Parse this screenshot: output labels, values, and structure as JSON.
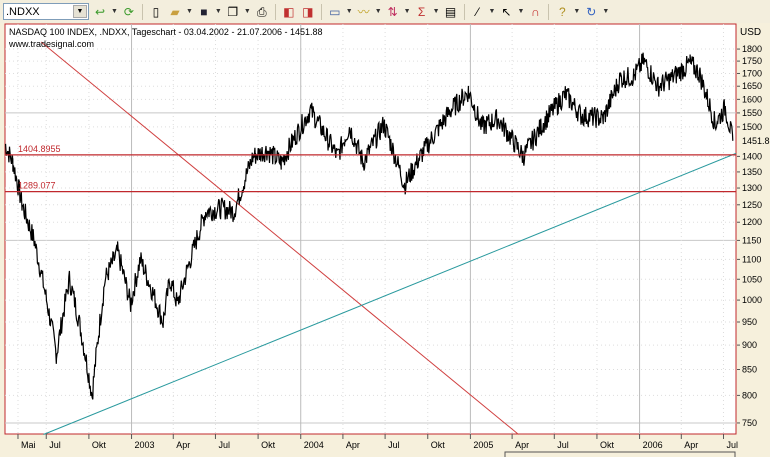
{
  "toolbar": {
    "symbol_value": ".NDXX",
    "icons": [
      "refresh-arrow-icon",
      "reload-icon",
      "new-doc-icon",
      "open-folder-icon",
      "save-icon",
      "copy-icon",
      "print-icon",
      "chart-prev-icon",
      "chart-next-icon",
      "window-icon",
      "indicator-icon",
      "strategy-icon",
      "sigma-icon",
      "properties-icon",
      "draw-line-icon",
      "cursor-icon",
      "magnet-icon",
      "help-icon",
      "undo-icon"
    ]
  },
  "chart_header": {
    "title": "NASDAQ 100 INDEX, .NDXX, Tageschart - 03.04.2002 - 21.07.2006 - 1451.88",
    "source": "www.tradesignal.com"
  },
  "colors": {
    "price": "#000000",
    "hline": "#c0282d",
    "trend_red": "#d04040",
    "trend_teal": "#2a9a9e",
    "grid": "#c8c8c8"
  },
  "chart_data": {
    "type": "line",
    "title": "NASDAQ 100 INDEX, .NDXX, Tageschart",
    "ylabel": "USD",
    "yscale": "log",
    "ylim": [
      730,
      1830
    ],
    "yticks": [
      1800,
      1750,
      1700,
      1650,
      1600,
      1550,
      1500,
      1400,
      1350,
      1300,
      1250,
      1200,
      1150,
      1100,
      1050,
      1000,
      950,
      900,
      850,
      800,
      750
    ],
    "last_value_label": "1451.88",
    "xlim": [
      "2002-04-03",
      "2006-07-28"
    ],
    "xticks": [
      {
        "d": "2002-05-01",
        "l": "Mai"
      },
      {
        "d": "2002-07-01",
        "l": "Jul"
      },
      {
        "d": "2002-10-01",
        "l": "Okt"
      },
      {
        "d": "2003-01-01",
        "l": "2003"
      },
      {
        "d": "2003-04-01",
        "l": "Apr"
      },
      {
        "d": "2003-07-01",
        "l": "Jul"
      },
      {
        "d": "2003-10-01",
        "l": "Okt"
      },
      {
        "d": "2004-01-01",
        "l": "2004"
      },
      {
        "d": "2004-04-01",
        "l": "Apr"
      },
      {
        "d": "2004-07-01",
        "l": "Jul"
      },
      {
        "d": "2004-10-01",
        "l": "Okt"
      },
      {
        "d": "2005-01-01",
        "l": "2005"
      },
      {
        "d": "2005-04-01",
        "l": "Apr"
      },
      {
        "d": "2005-07-01",
        "l": "Jul"
      },
      {
        "d": "2005-10-01",
        "l": "Okt"
      },
      {
        "d": "2006-01-01",
        "l": "2006"
      },
      {
        "d": "2006-04-01",
        "l": "Apr"
      },
      {
        "d": "2006-07-01",
        "l": "Jul"
      }
    ],
    "series": [
      {
        "name": ".NDXX",
        "points": [
          [
            "2002-04-03",
            1440
          ],
          [
            "2002-04-20",
            1380
          ],
          [
            "2002-05-10",
            1250
          ],
          [
            "2002-06-05",
            1150
          ],
          [
            "2002-07-23",
            880
          ],
          [
            "2002-08-20",
            1050
          ],
          [
            "2002-09-10",
            950
          ],
          [
            "2002-10-08",
            800
          ],
          [
            "2002-11-05",
            1050
          ],
          [
            "2002-12-02",
            1120
          ],
          [
            "2002-12-30",
            990
          ],
          [
            "2003-01-20",
            1100
          ],
          [
            "2003-03-10",
            950
          ],
          [
            "2003-03-25",
            1050
          ],
          [
            "2003-04-10",
            990
          ],
          [
            "2003-06-10",
            1230
          ],
          [
            "2003-07-15",
            1240
          ],
          [
            "2003-08-10",
            1230
          ],
          [
            "2003-09-20",
            1400
          ],
          [
            "2003-10-20",
            1420
          ],
          [
            "2003-11-20",
            1380
          ],
          [
            "2004-01-22",
            1560
          ],
          [
            "2004-03-20",
            1400
          ],
          [
            "2004-04-15",
            1500
          ],
          [
            "2004-05-15",
            1380
          ],
          [
            "2004-06-28",
            1510
          ],
          [
            "2004-08-12",
            1310
          ],
          [
            "2004-09-15",
            1400
          ],
          [
            "2004-11-20",
            1560
          ],
          [
            "2004-12-28",
            1630
          ],
          [
            "2005-01-25",
            1500
          ],
          [
            "2005-03-01",
            1530
          ],
          [
            "2005-04-25",
            1400
          ],
          [
            "2005-06-10",
            1520
          ],
          [
            "2005-07-25",
            1620
          ],
          [
            "2005-08-28",
            1540
          ],
          [
            "2005-10-15",
            1530
          ],
          [
            "2005-11-20",
            1680
          ],
          [
            "2005-12-20",
            1690
          ],
          [
            "2006-01-10",
            1750
          ],
          [
            "2006-02-10",
            1650
          ],
          [
            "2006-03-10",
            1680
          ],
          [
            "2006-04-20",
            1740
          ],
          [
            "2006-05-10",
            1700
          ],
          [
            "2006-06-13",
            1510
          ],
          [
            "2006-07-05",
            1570
          ],
          [
            "2006-07-21",
            1452
          ]
        ]
      }
    ],
    "horizontal_lines": [
      {
        "value": 1404.8955,
        "label": "1404.8955"
      },
      {
        "value": 1289.077,
        "label": "1289.077"
      }
    ],
    "trendlines": [
      {
        "color": "red",
        "from": [
          "2002-06-20",
          1830
        ],
        "to": [
          "2005-04-15",
          730
        ]
      },
      {
        "color": "teal",
        "from": [
          "2002-06-25",
          730
        ],
        "to": [
          "2006-07-28",
          1410
        ]
      }
    ]
  }
}
